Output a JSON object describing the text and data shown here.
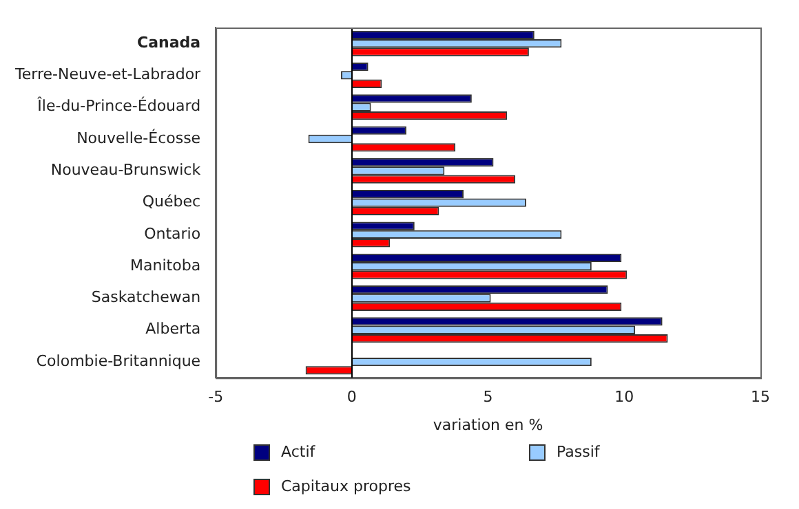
{
  "chart_data": {
    "type": "bar",
    "orientation": "horizontal",
    "xlabel": "variation en %",
    "categories": [
      "Canada",
      "Terre-Neuve-et-Labrador",
      "Île-du-Prince-Édouard",
      "Nouvelle-Écosse",
      "Nouveau-Brunswick",
      "Québec",
      "Ontario",
      "Manitoba",
      "Saskatchewan",
      "Alberta",
      "Colombie-Britannique"
    ],
    "series": [
      {
        "name": "Actif",
        "color": "#000080",
        "values": [
          6.7,
          0.6,
          4.4,
          2.0,
          5.2,
          4.1,
          2.3,
          9.9,
          9.4,
          11.4,
          null
        ]
      },
      {
        "name": "Passif",
        "color": "#99ccff",
        "values": [
          7.7,
          -0.4,
          0.7,
          -1.6,
          3.4,
          6.4,
          7.7,
          8.8,
          5.1,
          10.4,
          8.8
        ]
      },
      {
        "name": "Capitaux propres",
        "color": "#ff0000",
        "values": [
          6.5,
          1.1,
          5.7,
          3.8,
          6.0,
          3.2,
          1.4,
          10.1,
          9.9,
          11.6,
          -1.7
        ]
      }
    ],
    "xlim": [
      -5,
      15
    ],
    "xticks": [
      -5,
      0,
      5,
      10,
      15
    ],
    "grid": false,
    "ref_lines": [
      {
        "axis": "x",
        "value": 0,
        "color": "#000000"
      }
    ],
    "legend": "bottom"
  }
}
